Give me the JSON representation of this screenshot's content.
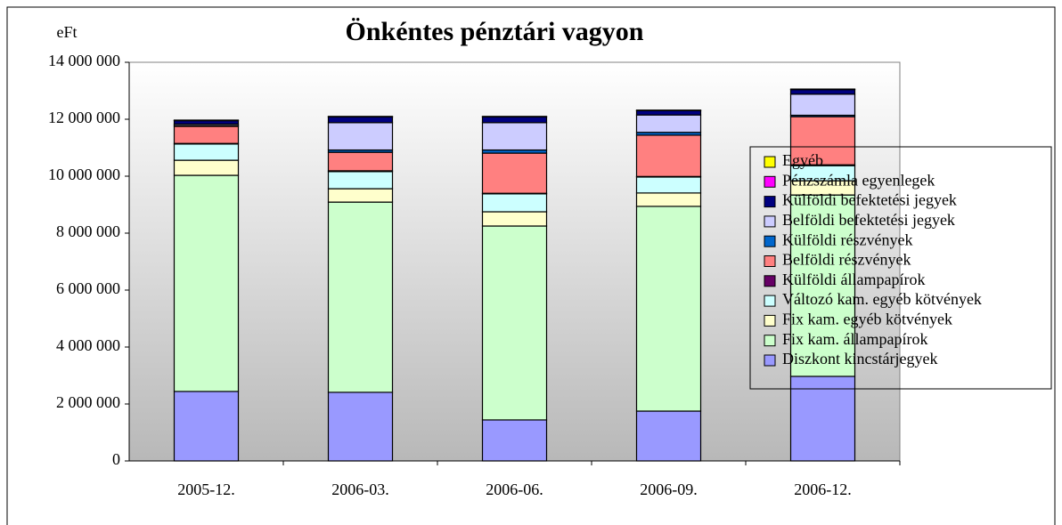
{
  "chart_data": {
    "type": "bar",
    "stacked": true,
    "title": "Önkéntes pénztári vagyon",
    "y_unit": "eFt",
    "categories": [
      "2005-12.",
      "2006-03.",
      "2006-06.",
      "2006-09.",
      "2006-12."
    ],
    "ylim": [
      0,
      14000000
    ],
    "yticks": [
      0,
      {
        "value": 2000000,
        "label": "2 000 000"
      },
      {
        "value": 4000000,
        "label": "4 000 000"
      },
      {
        "value": 6000000,
        "label": "6 000 000"
      },
      {
        "value": 8000000,
        "label": "8 000 000"
      },
      {
        "value": 10000000,
        "label": "10 000 000"
      },
      {
        "value": 12000000,
        "label": "12 000 000"
      },
      {
        "value": 14000000,
        "label": "14 000 000"
      }
    ],
    "legend": "right",
    "series": [
      {
        "name": "Diszkont kincstárjegyek",
        "color": "#9999ff",
        "values": [
          2440000,
          2410000,
          1440000,
          1750000,
          2970000
        ]
      },
      {
        "name": "Fix kam. állampapírok",
        "color": "#ccffcc",
        "values": [
          7590000,
          6680000,
          6810000,
          7190000,
          6370000
        ]
      },
      {
        "name": "Fix kam. egyéb kötvények",
        "color": "#ffffcc",
        "values": [
          530000,
          470000,
          500000,
          470000,
          500000
        ]
      },
      {
        "name": "Változó kam. egyéb kötvények",
        "color": "#ccffff",
        "values": [
          570000,
          600000,
          630000,
          560000,
          530000
        ]
      },
      {
        "name": "Külföldi állampapírok",
        "color": "#660066",
        "values": [
          20000,
          30000,
          20000,
          20000,
          30000
        ]
      },
      {
        "name": "Belföldi részvények",
        "color": "#ff8080",
        "values": [
          600000,
          650000,
          1410000,
          1450000,
          1690000
        ]
      },
      {
        "name": "Külföldi részvények",
        "color": "#0066cc",
        "values": [
          30000,
          80000,
          110000,
          100000,
          50000
        ]
      },
      {
        "name": "Belföldi befektetési jegyek",
        "color": "#ccccff",
        "values": [
          50000,
          960000,
          960000,
          610000,
          740000
        ]
      },
      {
        "name": "Külföldi befektetési jegyek",
        "color": "#000080",
        "values": [
          120000,
          200000,
          200000,
          150000,
          160000
        ]
      },
      {
        "name": "Pénzszámla egyenlegek",
        "color": "#ff00ff",
        "values": [
          10000,
          10000,
          10000,
          10000,
          10000
        ]
      },
      {
        "name": "Egyéb",
        "color": "#ffff00",
        "values": [
          10000,
          10000,
          10000,
          10000,
          10000
        ]
      }
    ]
  }
}
